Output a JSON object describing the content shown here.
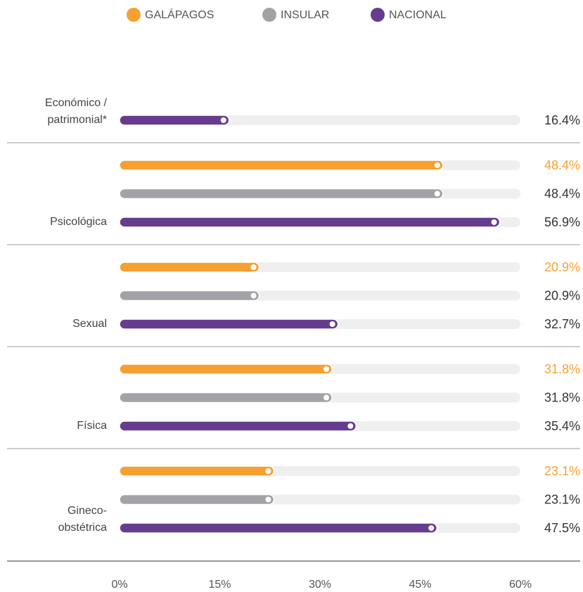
{
  "chart_data": {
    "type": "bar",
    "orientation": "horizontal",
    "categories": [
      [
        "Económico /",
        "patrimonial*"
      ],
      [
        "Psicológica"
      ],
      [
        "Sexual"
      ],
      [
        "Física"
      ],
      [
        "Gineco-",
        "obstétrica"
      ]
    ],
    "series": [
      {
        "name": "GALÁPAGOS",
        "color": "#f7a032",
        "values": [
          null,
          48.4,
          20.9,
          31.8,
          23.1
        ],
        "value_labels": [
          null,
          "48.4%",
          "20.9%",
          "31.8%",
          "23.1%"
        ]
      },
      {
        "name": "INSULAR",
        "color": "#a1a3a6",
        "values": [
          null,
          48.4,
          20.9,
          31.8,
          23.1
        ],
        "value_labels": [
          null,
          "48.4%",
          "20.9%",
          "31.8%",
          "23.1%"
        ]
      },
      {
        "name": "NACIONAL",
        "color": "#663d8e",
        "values": [
          16.4,
          56.9,
          32.7,
          35.4,
          47.5
        ],
        "value_labels": [
          "16.4%",
          "56.9%",
          "32.7%",
          "35.4%",
          "47.5%"
        ]
      }
    ],
    "xlim": [
      0,
      60
    ],
    "xticks": [
      {
        "value": 0,
        "label": "0%"
      },
      {
        "value": 15,
        "label": "15%"
      },
      {
        "value": 30,
        "label": "30%"
      },
      {
        "value": 45,
        "label": "45%"
      },
      {
        "value": 60,
        "label": "60%"
      }
    ],
    "legend": "top"
  }
}
